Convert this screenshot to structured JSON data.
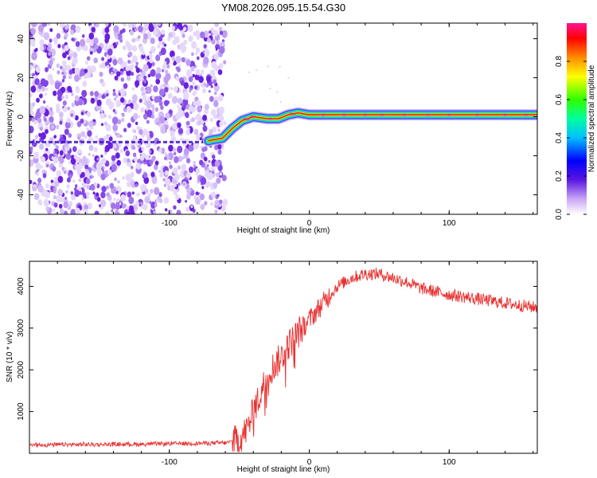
{
  "figure_title": "YM08.2026.095.15.54.G30",
  "chart_data": [
    {
      "type": "heatmap",
      "name": "spectrogram",
      "xlabel": "Height of straight line (km)",
      "ylabel": "Frequency (Hz)",
      "xlim": [
        -200,
        163
      ],
      "ylim": [
        -50,
        48
      ],
      "xticks": [
        -100,
        0,
        100
      ],
      "yticks": [
        -40,
        -20,
        0,
        20,
        40
      ],
      "noise_region_x": [
        -200,
        -60
      ],
      "signal_track": {
        "x": [
          -200,
          -150,
          -100,
          -75,
          -70,
          -62,
          -55,
          -48,
          -40,
          -30,
          -22,
          -15,
          -8,
          0,
          50,
          100,
          163
        ],
        "freq": [
          -13,
          -13,
          -13,
          -13,
          -12,
          -11,
          -6,
          -2,
          0,
          -1,
          -1,
          1,
          2,
          1,
          1,
          1,
          1
        ]
      },
      "colorbar": {
        "label": "Normalized spectral amplitude",
        "range": [
          0.0,
          1.0
        ],
        "ticks": [
          "0.0",
          "0.2",
          "0.4",
          "0.6",
          "0.8"
        ]
      }
    },
    {
      "type": "line",
      "name": "snr",
      "xlabel": "Height of straight line (km)",
      "ylabel": "SNR (10 * v/v)",
      "xlim": [
        -200,
        163
      ],
      "ylim": [
        0,
        4600
      ],
      "xticks": [
        -100,
        0,
        100
      ],
      "yticks": [
        1000,
        2000,
        3000,
        4000
      ],
      "color": "#e8302f",
      "envelope": {
        "x": [
          -200,
          -120,
          -60,
          -50,
          -44,
          -40,
          -35,
          -30,
          -25,
          -20,
          -15,
          -10,
          -5,
          0,
          10,
          20,
          30,
          40,
          50,
          60,
          70,
          80,
          100,
          120,
          140,
          160,
          163
        ],
        "y": [
          200,
          220,
          250,
          320,
          600,
          1000,
          1400,
          1900,
          2100,
          2300,
          2600,
          2800,
          3000,
          3200,
          3600,
          4000,
          4200,
          4300,
          4300,
          4200,
          4100,
          3950,
          3800,
          3700,
          3600,
          3500,
          3500
        ]
      }
    }
  ]
}
